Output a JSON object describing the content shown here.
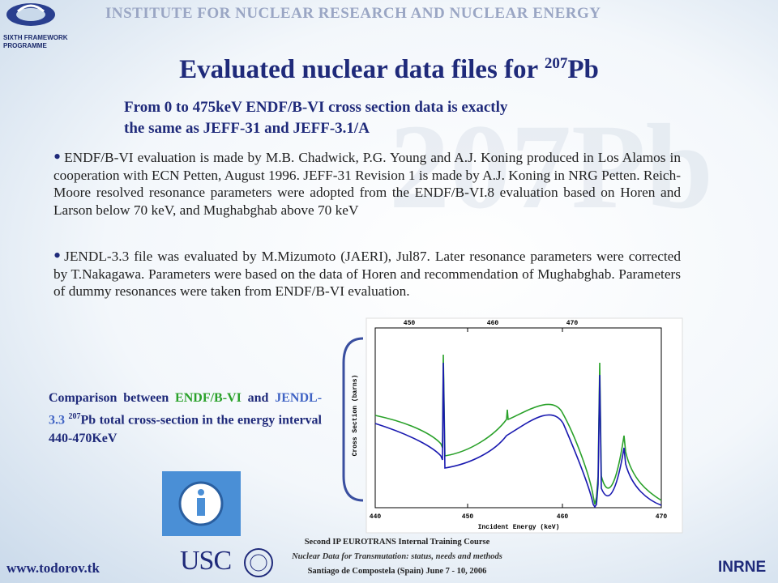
{
  "header": {
    "institute": "INSTITUTE FOR NUCLEAR RESEARCH AND NUCLEAR ENERGY",
    "programme_line1": "SIXTH FRAMEWORK",
    "programme_line2": "PROGRAMME"
  },
  "watermark": "207Pb",
  "title": {
    "text": "Evaluated nuclear data files for ",
    "superscript": "207",
    "element": "Pb"
  },
  "subtitle": {
    "line1": "From 0 to 475keV ENDF/B-VI cross section data is exactly",
    "line2": "the same as JEFF-31 and JEFF-3.1/A"
  },
  "bullets": [
    "ENDF/B-VI evaluation is made by M.B. Chadwick, P.G. Young and A.J. Koning produced in Los Alamos in cooperation with ECN Petten, August 1996. JEFF-31 Revision 1 is made by A.J. Koning in NRG Petten. Reich-Moore resolved resonance parameters were adopted from the ENDF/B-VI.8 evaluation based on Horen and Larson below 70 keV, and Mughabghab above 70 keV",
    "JENDL-3.3 file was evaluated by M.Mizumoto (JAERI), Jul87. Later resonance parameters were corrected by T.Nakagawa. Parameters were based on the data of Horen and recommendation of Mughabghab. Parameters of dummy resonances were taken from ENDF/B-VI evaluation."
  ],
  "caption": {
    "part1": "Comparison between ",
    "endf": "ENDF/B-VI",
    "part2": " and ",
    "jendl": "JENDL-3.3",
    "superscript": "207",
    "part3": "Pb total cross-section in the energy interval 440-470KeV"
  },
  "plot": {
    "y_label": "Cross Section (barns)",
    "x_label": "Incident Energy (keV)",
    "bottom_ticks": [
      "440",
      "450",
      "460",
      "470"
    ],
    "top_ticks": [
      "450",
      "460",
      "470"
    ]
  },
  "footer": {
    "line1": "Second IP EUROTRANS Internal Training Course",
    "line2": "Nuclear Data for Transmutation: status, needs and methods",
    "line3": "Santiago de Compostela (Spain) June 7 - 10, 2006",
    "website": "www.todorov.tk",
    "usc": "USC",
    "inrne": "INRNE"
  }
}
